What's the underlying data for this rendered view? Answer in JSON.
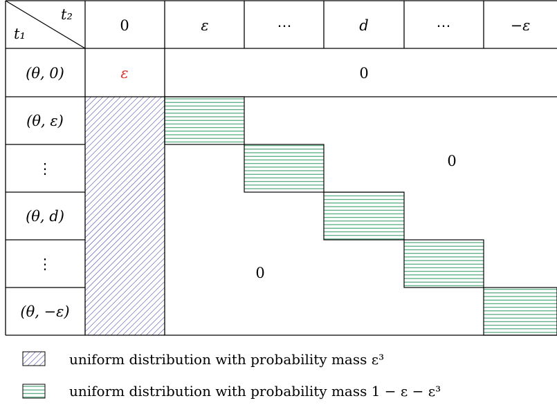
{
  "header": {
    "corner_col_label": "t₂",
    "corner_row_label": "t₁",
    "columns": [
      "0",
      "ε",
      "⋯",
      "d",
      "⋯",
      "−ε"
    ]
  },
  "rows": [
    {
      "label": "(θ, 0)"
    },
    {
      "label": "(θ, ε)"
    },
    {
      "label": "⋮"
    },
    {
      "label": "(θ, d)"
    },
    {
      "label": "⋮"
    },
    {
      "label": "(θ, −ε)"
    }
  ],
  "cells": {
    "top_left_value": "ε",
    "top_row_rest_value": "0",
    "upper_right_value": "0",
    "lower_left_value": "0"
  },
  "legend": [
    {
      "pattern": "diagonal-hatch",
      "text": "uniform distribution with probability mass ε³"
    },
    {
      "pattern": "horizontal-hatch",
      "text": "uniform distribution with probability mass 1 − ε − ε³"
    }
  ],
  "colors": {
    "diagonal_hatch": "#3a3aa0",
    "horizontal_hatch": "#3a9e6a",
    "epsilon_highlight": "#e0302a"
  }
}
